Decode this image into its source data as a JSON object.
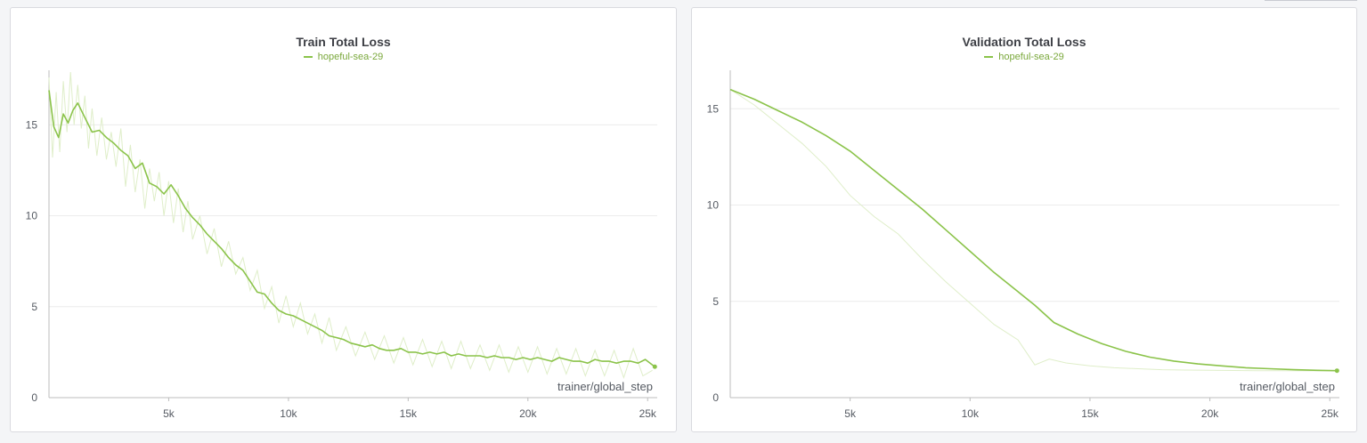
{
  "colors": {
    "series": "#8bc34a",
    "raw_series": "#dfeec9",
    "grid": "#ececec",
    "axis": "#bdbdbd"
  },
  "chart_data": [
    {
      "type": "line",
      "title": "Train Total Loss",
      "xlabel": "trainer/global_step",
      "ylabel": "",
      "xlim": [
        0,
        25400
      ],
      "ylim": [
        0,
        18
      ],
      "xticks": [
        5000,
        10000,
        15000,
        20000,
        25000
      ],
      "xtick_labels": [
        "5k",
        "10k",
        "15k",
        "20k",
        "25k"
      ],
      "yticks": [
        0,
        5,
        10,
        15
      ],
      "ytick_labels": [
        "0",
        "5",
        "10",
        "15"
      ],
      "grid": true,
      "legend": "top-center",
      "series": [
        {
          "name": "hopeful-sea-29",
          "x": [
            0,
            200,
            400,
            600,
            800,
            1000,
            1200,
            1500,
            1800,
            2100,
            2400,
            2700,
            3000,
            3300,
            3600,
            3900,
            4200,
            4500,
            4800,
            5100,
            5400,
            5700,
            6000,
            6300,
            6600,
            6900,
            7200,
            7500,
            7800,
            8100,
            8400,
            8700,
            9000,
            9300,
            9600,
            9900,
            10200,
            10500,
            10800,
            11100,
            11400,
            11700,
            12000,
            12300,
            12600,
            12900,
            13200,
            13500,
            13800,
            14100,
            14400,
            14700,
            15000,
            15300,
            15600,
            15900,
            16200,
            16500,
            16800,
            17100,
            17400,
            17700,
            18000,
            18300,
            18600,
            18900,
            19200,
            19500,
            19800,
            20100,
            20400,
            20700,
            21000,
            21300,
            21600,
            21900,
            22200,
            22500,
            22800,
            23100,
            23400,
            23700,
            24000,
            24300,
            24600,
            24900,
            25200,
            25300
          ],
          "y": [
            16.9,
            14.9,
            14.3,
            15.6,
            15.1,
            15.8,
            16.2,
            15.4,
            14.6,
            14.7,
            14.3,
            14.0,
            13.6,
            13.3,
            12.6,
            12.9,
            11.8,
            11.6,
            11.2,
            11.7,
            11.1,
            10.4,
            9.9,
            9.5,
            9.0,
            8.6,
            8.2,
            7.7,
            7.3,
            7.0,
            6.4,
            5.8,
            5.7,
            5.2,
            4.8,
            4.6,
            4.5,
            4.3,
            4.1,
            3.9,
            3.7,
            3.4,
            3.3,
            3.2,
            3.0,
            2.9,
            2.8,
            2.9,
            2.7,
            2.6,
            2.6,
            2.7,
            2.5,
            2.5,
            2.4,
            2.5,
            2.4,
            2.5,
            2.3,
            2.4,
            2.3,
            2.3,
            2.3,
            2.2,
            2.3,
            2.2,
            2.2,
            2.1,
            2.2,
            2.1,
            2.2,
            2.1,
            2.0,
            2.2,
            2.1,
            2.0,
            2.0,
            1.9,
            2.1,
            2.0,
            2.0,
            1.9,
            2.0,
            2.0,
            1.9,
            2.1,
            1.8,
            1.7
          ]
        }
      ]
    },
    {
      "type": "line",
      "title": "Validation Total Loss",
      "xlabel": "trainer/global_step",
      "ylabel": "",
      "xlim": [
        0,
        25400
      ],
      "ylim": [
        0,
        17
      ],
      "xticks": [
        5000,
        10000,
        15000,
        20000,
        25000
      ],
      "xtick_labels": [
        "5k",
        "10k",
        "15k",
        "20k",
        "25k"
      ],
      "yticks": [
        0,
        5,
        10,
        15
      ],
      "ytick_labels": [
        "0",
        "5",
        "10",
        "15"
      ],
      "grid": true,
      "legend": "top-center",
      "series": [
        {
          "name": "hopeful-sea-29",
          "x": [
            0,
            1000,
            2000,
            3000,
            4000,
            5000,
            6000,
            7000,
            8000,
            9000,
            10000,
            11000,
            12000,
            12700,
            13500,
            14500,
            15500,
            16500,
            17500,
            18500,
            19500,
            20500,
            21500,
            22500,
            23500,
            24500,
            25300
          ],
          "y": [
            16.0,
            15.5,
            14.9,
            14.3,
            13.6,
            12.8,
            11.8,
            10.8,
            9.8,
            8.7,
            7.6,
            6.5,
            5.5,
            4.8,
            3.9,
            3.3,
            2.8,
            2.4,
            2.1,
            1.9,
            1.75,
            1.65,
            1.55,
            1.5,
            1.45,
            1.42,
            1.4
          ]
        }
      ]
    }
  ],
  "raw_traces": [
    {
      "x": [
        0,
        150,
        300,
        450,
        600,
        750,
        900,
        1050,
        1200,
        1350,
        1500,
        1650,
        1800,
        2000,
        2200,
        2400,
        2600,
        2800,
        3000,
        3200,
        3400,
        3600,
        3800,
        4000,
        4200,
        4400,
        4600,
        4800,
        5000,
        5200,
        5400,
        5600,
        5800,
        6000,
        6300,
        6600,
        6900,
        7200,
        7500,
        7800,
        8100,
        8400,
        8700,
        9000,
        9300,
        9600,
        9900,
        10200,
        10500,
        10800,
        11100,
        11400,
        11700,
        12000,
        12400,
        12800,
        13200,
        13600,
        14000,
        14400,
        14800,
        15200,
        15600,
        16000,
        16400,
        16800,
        17200,
        17600,
        18000,
        18400,
        18800,
        19200,
        19600,
        20000,
        20400,
        20800,
        21200,
        21600,
        22000,
        22400,
        22800,
        23200,
        23600,
        24000,
        24400,
        24800,
        25200
      ],
      "y": [
        17.6,
        13.2,
        16.8,
        13.5,
        17.4,
        14.6,
        17.9,
        15.0,
        17.2,
        14.8,
        16.6,
        13.7,
        15.9,
        13.3,
        15.4,
        13.1,
        14.6,
        12.7,
        14.8,
        11.6,
        13.9,
        11.3,
        13.1,
        10.4,
        12.6,
        10.8,
        12.4,
        10.0,
        11.9,
        9.6,
        11.5,
        9.1,
        10.8,
        8.7,
        10.0,
        7.9,
        9.3,
        7.2,
        8.6,
        6.8,
        7.7,
        5.9,
        7.0,
        4.9,
        6.1,
        4.1,
        5.6,
        3.9,
        5.2,
        3.5,
        4.6,
        3.0,
        4.4,
        2.6,
        3.9,
        2.3,
        3.6,
        2.1,
        3.4,
        1.9,
        3.3,
        1.8,
        3.2,
        1.7,
        3.1,
        1.6,
        3.1,
        1.6,
        2.9,
        1.5,
        2.9,
        1.4,
        2.8,
        1.4,
        2.8,
        1.3,
        2.7,
        1.3,
        2.7,
        1.2,
        2.6,
        1.2,
        2.6,
        1.1,
        2.7,
        1.2,
        1.5
      ]
    },
    {
      "x": [
        0,
        1000,
        2000,
        3000,
        4000,
        5000,
        6000,
        7000,
        8000,
        9000,
        10000,
        11000,
        12000,
        12700,
        13300,
        14000,
        15000,
        16000,
        17000,
        18000,
        19000,
        20000,
        21000,
        22000,
        23000,
        24000,
        25300
      ],
      "y": [
        16.0,
        15.2,
        14.2,
        13.2,
        12.0,
        10.5,
        9.4,
        8.5,
        7.2,
        6.0,
        4.9,
        3.8,
        3.0,
        1.7,
        2.0,
        1.8,
        1.65,
        1.55,
        1.5,
        1.45,
        1.43,
        1.42,
        1.41,
        1.4,
        1.4,
        1.39,
        1.38
      ]
    }
  ]
}
